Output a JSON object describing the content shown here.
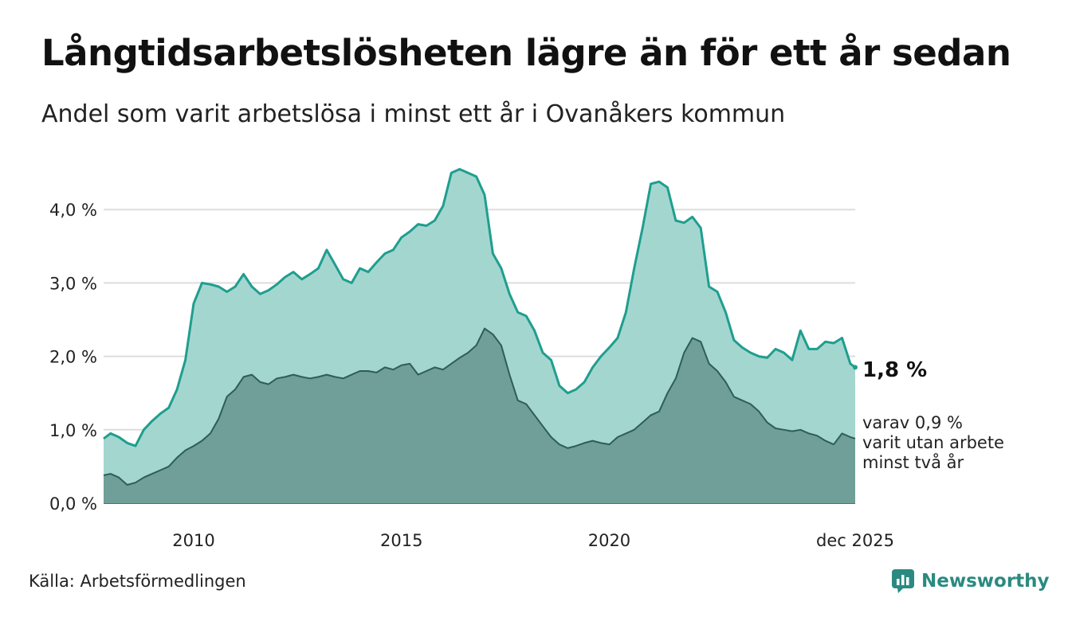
{
  "chart_data": {
    "type": "area",
    "title": "Långtidsarbetslösheten lägre än för ett år sedan",
    "subtitle": "Andel som varit arbetslösa i minst ett år i Ovanåkers kommun",
    "y_ticks": [
      "0,0 %",
      "1,0 %",
      "2,0 %",
      "3,0 %",
      "4,0 %"
    ],
    "y_tick_values": [
      0,
      1,
      2,
      3,
      4
    ],
    "ylim": [
      0,
      4.6
    ],
    "x_ticks": [
      "2010",
      "2015",
      "2020",
      "dec 2025"
    ],
    "x_tick_values": [
      2010,
      2015,
      2020,
      2025.917
    ],
    "xlim": [
      2007.833,
      2025.917
    ],
    "series": [
      {
        "name": "Minst ett år",
        "end_label": "1,8 %",
        "color": "#1f9e8e",
        "fill": "#a4d6d0",
        "x": [
          2007.833,
          2008.0,
          2008.2,
          2008.4,
          2008.6,
          2008.8,
          2009.0,
          2009.2,
          2009.4,
          2009.6,
          2009.8,
          2010.0,
          2010.2,
          2010.4,
          2010.6,
          2010.8,
          2011.0,
          2011.2,
          2011.4,
          2011.6,
          2011.8,
          2012.0,
          2012.2,
          2012.4,
          2012.6,
          2012.8,
          2013.0,
          2013.2,
          2013.4,
          2013.6,
          2013.8,
          2014.0,
          2014.2,
          2014.4,
          2014.6,
          2014.8,
          2015.0,
          2015.2,
          2015.4,
          2015.6,
          2015.8,
          2016.0,
          2016.2,
          2016.4,
          2016.6,
          2016.8,
          2017.0,
          2017.2,
          2017.4,
          2017.6,
          2017.8,
          2018.0,
          2018.2,
          2018.4,
          2018.6,
          2018.8,
          2019.0,
          2019.2,
          2019.4,
          2019.6,
          2019.8,
          2020.0,
          2020.2,
          2020.4,
          2020.6,
          2020.8,
          2021.0,
          2021.2,
          2021.4,
          2021.6,
          2021.8,
          2022.0,
          2022.2,
          2022.4,
          2022.6,
          2022.8,
          2023.0,
          2023.2,
          2023.4,
          2023.6,
          2023.8,
          2024.0,
          2024.2,
          2024.4,
          2024.6,
          2024.8,
          2025.0,
          2025.2,
          2025.4,
          2025.6,
          2025.8,
          2025.917
        ],
        "values": [
          0.88,
          0.95,
          0.9,
          0.82,
          0.78,
          1.0,
          1.12,
          1.22,
          1.3,
          1.55,
          1.95,
          2.72,
          3.0,
          2.98,
          2.95,
          2.88,
          2.95,
          3.12,
          2.95,
          2.85,
          2.9,
          2.98,
          3.08,
          3.15,
          3.05,
          3.12,
          3.2,
          3.45,
          3.25,
          3.05,
          3.0,
          3.2,
          3.15,
          3.28,
          3.4,
          3.45,
          3.62,
          3.7,
          3.8,
          3.78,
          3.85,
          4.05,
          4.5,
          4.55,
          4.5,
          4.45,
          4.2,
          3.4,
          3.2,
          2.85,
          2.6,
          2.55,
          2.35,
          2.05,
          1.95,
          1.6,
          1.5,
          1.55,
          1.65,
          1.85,
          2.0,
          2.12,
          2.25,
          2.6,
          3.2,
          3.75,
          4.35,
          4.38,
          4.3,
          3.85,
          3.82,
          3.9,
          3.75,
          2.95,
          2.88,
          2.6,
          2.22,
          2.12,
          2.05,
          2.0,
          1.98,
          2.1,
          2.05,
          1.95,
          2.35,
          2.1,
          2.1,
          2.2,
          2.18,
          2.25,
          1.9,
          1.85
        ]
      },
      {
        "name": "Minst två år",
        "end_label": "varav 0,9 %\nvarit utan arbete\nminst två år",
        "color": "#2f5d57",
        "fill": "#6f9f98",
        "x": [
          2007.833,
          2008.0,
          2008.2,
          2008.4,
          2008.6,
          2008.8,
          2009.0,
          2009.2,
          2009.4,
          2009.6,
          2009.8,
          2010.0,
          2010.2,
          2010.4,
          2010.6,
          2010.8,
          2011.0,
          2011.2,
          2011.4,
          2011.6,
          2011.8,
          2012.0,
          2012.2,
          2012.4,
          2012.6,
          2012.8,
          2013.0,
          2013.2,
          2013.4,
          2013.6,
          2013.8,
          2014.0,
          2014.2,
          2014.4,
          2014.6,
          2014.8,
          2015.0,
          2015.2,
          2015.4,
          2015.6,
          2015.8,
          2016.0,
          2016.2,
          2016.4,
          2016.6,
          2016.8,
          2017.0,
          2017.2,
          2017.4,
          2017.6,
          2017.8,
          2018.0,
          2018.2,
          2018.4,
          2018.6,
          2018.8,
          2019.0,
          2019.2,
          2019.4,
          2019.6,
          2019.8,
          2020.0,
          2020.2,
          2020.4,
          2020.6,
          2020.8,
          2021.0,
          2021.2,
          2021.4,
          2021.6,
          2021.8,
          2022.0,
          2022.2,
          2022.4,
          2022.6,
          2022.8,
          2023.0,
          2023.2,
          2023.4,
          2023.6,
          2023.8,
          2024.0,
          2024.2,
          2024.4,
          2024.6,
          2024.8,
          2025.0,
          2025.2,
          2025.4,
          2025.6,
          2025.8,
          2025.917
        ],
        "values": [
          0.38,
          0.4,
          0.35,
          0.25,
          0.28,
          0.35,
          0.4,
          0.45,
          0.5,
          0.62,
          0.72,
          0.78,
          0.85,
          0.95,
          1.15,
          1.45,
          1.55,
          1.72,
          1.75,
          1.65,
          1.62,
          1.7,
          1.72,
          1.75,
          1.72,
          1.7,
          1.72,
          1.75,
          1.72,
          1.7,
          1.75,
          1.8,
          1.8,
          1.78,
          1.85,
          1.82,
          1.88,
          1.9,
          1.75,
          1.8,
          1.85,
          1.82,
          1.9,
          1.98,
          2.05,
          2.15,
          2.38,
          2.3,
          2.15,
          1.75,
          1.4,
          1.35,
          1.2,
          1.05,
          0.9,
          0.8,
          0.75,
          0.78,
          0.82,
          0.85,
          0.82,
          0.8,
          0.9,
          0.95,
          1.0,
          1.1,
          1.2,
          1.25,
          1.5,
          1.7,
          2.05,
          2.25,
          2.2,
          1.9,
          1.8,
          1.65,
          1.45,
          1.4,
          1.35,
          1.25,
          1.1,
          1.02,
          1.0,
          0.98,
          1.0,
          0.95,
          0.92,
          0.85,
          0.8,
          0.95,
          0.9,
          0.88
        ]
      }
    ]
  },
  "source": "Källa: Arbetsförmedlingen",
  "brand": "Newsworthy"
}
